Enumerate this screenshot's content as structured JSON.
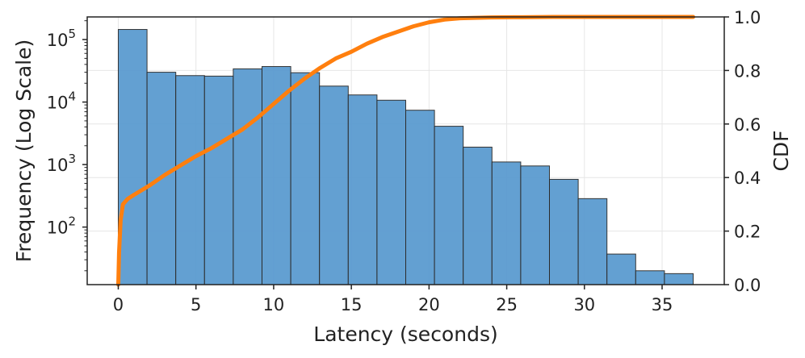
{
  "chart_data": {
    "type": "bar",
    "title": "",
    "xlabel": "Latency (seconds)",
    "ylabel": "Frequency (Log Scale)",
    "y2label": "CDF",
    "xlim": [
      -2.0,
      39.0
    ],
    "ylim": [
      12,
      230000
    ],
    "y2lim": [
      0.0,
      1.0
    ],
    "yscale": "log",
    "grid": true,
    "legend": "none",
    "x_ticks": [
      0,
      5,
      10,
      15,
      20,
      25,
      30,
      35
    ],
    "y_ticks": [
      {
        "value": 100,
        "base": "10",
        "exp": "2"
      },
      {
        "value": 1000,
        "base": "10",
        "exp": "3"
      },
      {
        "value": 10000,
        "base": "10",
        "exp": "4"
      },
      {
        "value": 100000,
        "base": "10",
        "exp": "5"
      }
    ],
    "y2_ticks": [
      "0.0",
      "0.2",
      "0.4",
      "0.6",
      "0.8",
      "1.0"
    ],
    "bin_edges": [
      0.0,
      1.85,
      3.7,
      5.55,
      7.4,
      9.25,
      11.1,
      12.95,
      14.8,
      16.65,
      18.5,
      20.35,
      22.2,
      24.05,
      25.9,
      27.75,
      29.6,
      31.45,
      33.3,
      35.15,
      37.0
    ],
    "series": [
      {
        "name": "",
        "kind": "histogram",
        "color": "#5b9bd0",
        "values": [
          145000,
          30000,
          26500,
          26000,
          34000,
          37000,
          29500,
          18000,
          13000,
          10700,
          7400,
          4100,
          1900,
          1100,
          950,
          580,
          285,
          37,
          20,
          18
        ]
      },
      {
        "name": "",
        "kind": "cdf",
        "axis": "right",
        "color": "#ff7f0e",
        "x": [
          0.0,
          0.05,
          0.15,
          0.3,
          0.6,
          1.0,
          2.0,
          3.0,
          4.0,
          5.0,
          6.0,
          7.0,
          8.0,
          9.0,
          10.0,
          11.0,
          12.0,
          13.0,
          14.0,
          15.0,
          16.0,
          17.0,
          18.0,
          19.0,
          20.0,
          21.0,
          22.0,
          24.0,
          26.0,
          28.0,
          30.0,
          33.0,
          37.0
        ],
        "y": [
          0.0,
          0.12,
          0.24,
          0.3,
          0.32,
          0.335,
          0.37,
          0.41,
          0.445,
          0.48,
          0.51,
          0.545,
          0.58,
          0.625,
          0.675,
          0.725,
          0.77,
          0.81,
          0.845,
          0.87,
          0.9,
          0.925,
          0.945,
          0.965,
          0.98,
          0.99,
          0.995,
          0.998,
          0.999,
          1.0,
          1.0,
          1.0,
          1.0
        ]
      }
    ]
  }
}
